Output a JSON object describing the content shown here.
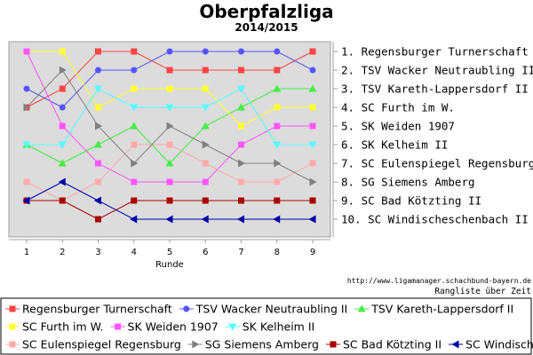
{
  "chart_data": {
    "type": "line",
    "title": "Oberpfalzliga",
    "subtitle": "2014/2015",
    "xlabel": "Runde",
    "x": [
      1,
      2,
      3,
      4,
      5,
      6,
      7,
      8,
      9
    ],
    "ylim": [
      1,
      10
    ],
    "y_inverted": true,
    "grid": false,
    "legend_placement": "bottom",
    "ranking_labels": [
      "1. Regensburger Turnerschaft",
      "2. TSV Wacker Neutraubling II",
      "3. TSV Kareth-Lappersdorf II",
      "4. SC Furth im W.",
      "5. SK Weiden 1907",
      "6. SK Kelheim II",
      "7. SC Eulenspiegel Regensburg",
      "8. SG Siemens Amberg",
      "9. SC Bad Kötzting II",
      "10. SC Windischeschenbach II"
    ],
    "series": [
      {
        "name": "Regensburger Turnerschaft",
        "color": "#ff4444",
        "marker": "square",
        "values": [
          4,
          3,
          1,
          1,
          2,
          2,
          2,
          2,
          1
        ]
      },
      {
        "name": "TSV Wacker Neutraubling II",
        "color": "#5555ff",
        "marker": "circle",
        "values": [
          3,
          4,
          2,
          2,
          1,
          1,
          1,
          1,
          2
        ]
      },
      {
        "name": "TSV Kareth-Lappersdorf II",
        "color": "#44ee44",
        "marker": "triangle-up",
        "values": [
          6,
          7,
          6,
          5,
          7,
          5,
          4,
          3,
          3
        ]
      },
      {
        "name": "SC Furth im W.",
        "color": "#ffff33",
        "marker": "square",
        "values": [
          1,
          1,
          4,
          3,
          3,
          3,
          5,
          4,
          4
        ]
      },
      {
        "name": "SK Weiden 1907",
        "color": "#ff55ff",
        "marker": "square",
        "values": [
          1,
          5,
          7,
          8,
          8,
          8,
          6,
          5,
          5
        ]
      },
      {
        "name": "SK Kelheim II",
        "color": "#55ffff",
        "marker": "triangle-down",
        "values": [
          6,
          6,
          3,
          4,
          4,
          4,
          3,
          6,
          6
        ]
      },
      {
        "name": "SC Eulenspiegel Regensburg",
        "color": "#ffaaaa",
        "marker": "square",
        "values": [
          8,
          9,
          8,
          6,
          6,
          7,
          8,
          8,
          7
        ]
      },
      {
        "name": "SG Siemens Amberg",
        "color": "#808080",
        "marker": "triangle-right",
        "values": [
          4,
          2,
          5,
          7,
          5,
          6,
          7,
          7,
          8
        ]
      },
      {
        "name": "SC Bad Kötzting II",
        "color": "#aa0000",
        "marker": "square",
        "values": [
          9,
          9,
          10,
          9,
          9,
          9,
          9,
          9,
          9
        ]
      },
      {
        "name": "SC Windischeschenbach II",
        "color": "#0000aa",
        "marker": "triangle-left",
        "values": [
          9,
          8,
          9,
          10,
          10,
          10,
          10,
          10,
          10
        ]
      }
    ]
  },
  "footer": {
    "url": "http://www.ligamanager.schachbund-bayern.de",
    "caption": "Rangliste über Zeit"
  }
}
